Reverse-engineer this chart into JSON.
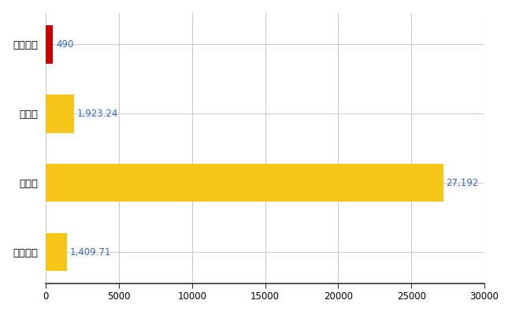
{
  "categories": [
    "みやこ町",
    "県平均",
    "県最大",
    "全国平均"
  ],
  "values": [
    490,
    1923.24,
    27192,
    1409.71
  ],
  "bar_colors": [
    "#cc0000",
    "#f5c518",
    "#f5c518",
    "#f5c518"
  ],
  "labels": [
    "490",
    "1,923.24",
    "27,192",
    "1,409.71"
  ],
  "xlim": [
    0,
    30000
  ],
  "xticks": [
    0,
    5000,
    10000,
    15000,
    20000,
    25000,
    30000
  ],
  "xtick_labels": [
    "0",
    "5000",
    "10000",
    "15000",
    "20000",
    "25000",
    "30000"
  ],
  "background_color": "#ffffff",
  "grid_color": "#cccccc",
  "bar_height": 0.55,
  "label_color": "#3366cc",
  "ytick_color": "#000000",
  "figsize": [
    6.5,
    4.0
  ],
  "dpi": 100
}
